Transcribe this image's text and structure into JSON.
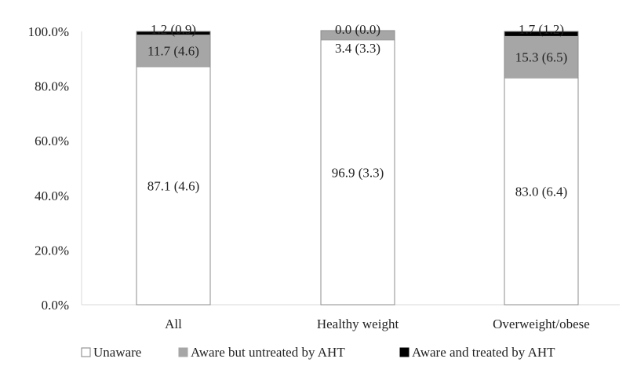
{
  "chart_data": {
    "type": "bar",
    "stacked": true,
    "categories": [
      "All",
      "Healthy weight",
      "Overweight/obese"
    ],
    "series": [
      {
        "name": "Unaware",
        "values": [
          87.1,
          96.9,
          83.0
        ],
        "labels": [
          "87.1 (4.6)",
          "96.9 (3.3)",
          "83.0 (6.4)"
        ],
        "color": "#ffffff"
      },
      {
        "name": "Aware but untreated by AHT",
        "values": [
          11.7,
          3.4,
          15.3
        ],
        "labels": [
          "11.7 (4.6)",
          "3.4 (3.3)",
          "15.3 (6.5)"
        ],
        "color": "#a6a6a6"
      },
      {
        "name": "Aware and treated by AHT",
        "values": [
          1.2,
          0.0,
          1.7
        ],
        "labels": [
          "1.2 (0.9)",
          "0.0 (0.0)",
          "1.7 (1.2)"
        ],
        "color": "#000000"
      }
    ],
    "ylim": [
      0,
      100
    ],
    "y_ticks": [
      0,
      20,
      40,
      60,
      80,
      100
    ],
    "y_tick_labels": [
      "0.0%",
      "20.0%",
      "40.0%",
      "60.0%",
      "80.0%",
      "100.0%"
    ],
    "title": "",
    "xlabel": "",
    "ylabel": "",
    "grid": false,
    "legend_position": "bottom"
  }
}
